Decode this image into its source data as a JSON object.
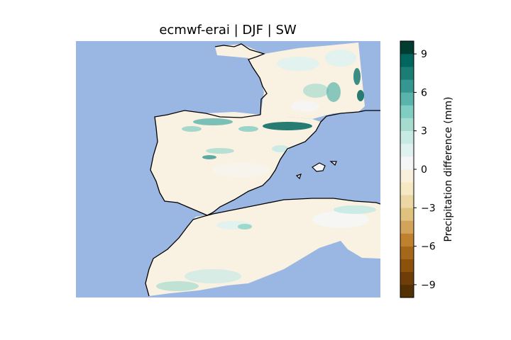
{
  "figure": {
    "title": "ecmwf-erai | DJF | SW"
  },
  "colorbar": {
    "label": "Precipitation difference (mm)",
    "ticks": [
      {
        "label": "9",
        "value": 9
      },
      {
        "label": "6",
        "value": 6
      },
      {
        "label": "3",
        "value": 3
      },
      {
        "label": "0",
        "value": 0
      },
      {
        "label": "−3",
        "value": -3
      },
      {
        "label": "−6",
        "value": -6
      },
      {
        "label": "−9",
        "value": -9
      }
    ],
    "range": [
      -10,
      10
    ],
    "colors": [
      "#543005",
      "#6f3d08",
      "#8c510a",
      "#a5671a",
      "#bf812d",
      "#d2a35a",
      "#dfc27d",
      "#ebd6a4",
      "#f6e8c3",
      "#f8f0dc",
      "#f5f5f5",
      "#dff2ef",
      "#c7eae5",
      "#a6dbd0",
      "#80cdc1",
      "#5ab4ac",
      "#35978f",
      "#1b7d74",
      "#01665e",
      "#003c30"
    ]
  },
  "map": {
    "sea_color": "#9ab6e3",
    "land_color": "#f9f1e1",
    "coastline_color": "#000000"
  }
}
